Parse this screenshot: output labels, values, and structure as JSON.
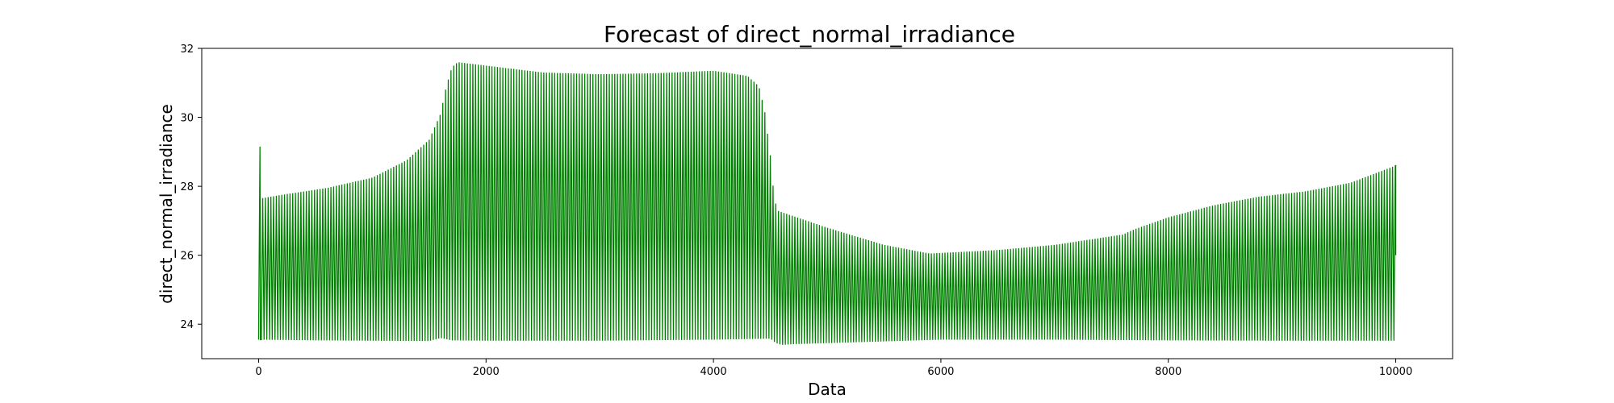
{
  "chart_data": {
    "type": "line",
    "title": "Forecast of direct_normal_irradiance",
    "xlabel": "Data",
    "ylabel": "direct_normal_irradiance",
    "xlim": [
      -500,
      10500
    ],
    "ylim": [
      23,
      32
    ],
    "xticks": [
      0,
      2000,
      4000,
      6000,
      8000,
      10000
    ],
    "yticks": [
      24,
      26,
      28,
      30,
      32
    ],
    "grid": false,
    "legend": "none",
    "series": [
      {
        "color": "#008000",
        "cycle_length": 24,
        "x_range": [
          0,
          10000
        ],
        "initial_spike": {
          "x": 12,
          "y": 29.15
        },
        "upper_envelope": {
          "x": [
            24,
            200,
            600,
            1000,
            1300,
            1500,
            1600,
            1650,
            1700,
            1750,
            1800,
            2000,
            2500,
            3000,
            3500,
            4000,
            4300,
            4400,
            4450,
            4500,
            4530,
            4560,
            4600,
            5000,
            5500,
            5900,
            6500,
            7000,
            7600,
            7700,
            8000,
            8400,
            8800,
            9200,
            9600,
            10000
          ],
          "y": [
            27.65,
            27.75,
            27.95,
            28.25,
            28.75,
            29.35,
            30.1,
            30.9,
            31.45,
            31.6,
            31.58,
            31.5,
            31.3,
            31.25,
            31.28,
            31.35,
            31.2,
            30.9,
            30.2,
            28.9,
            27.8,
            27.3,
            27.25,
            26.8,
            26.3,
            26.05,
            26.15,
            26.3,
            26.6,
            26.75,
            27.1,
            27.45,
            27.7,
            27.85,
            28.1,
            28.6
          ]
        },
        "lower_envelope": {
          "x": [
            0,
            500,
            1000,
            1500,
            1600,
            1700,
            2000,
            3000,
            4000,
            4500,
            4550,
            4600,
            4700,
            5000,
            5500,
            6000,
            7000,
            8000,
            9000,
            10000
          ],
          "y": [
            23.55,
            23.53,
            23.52,
            23.51,
            23.6,
            23.53,
            23.52,
            23.52,
            23.55,
            23.58,
            23.45,
            23.4,
            23.42,
            23.45,
            23.5,
            23.55,
            23.55,
            23.53,
            23.52,
            23.52
          ]
        }
      }
    ]
  }
}
